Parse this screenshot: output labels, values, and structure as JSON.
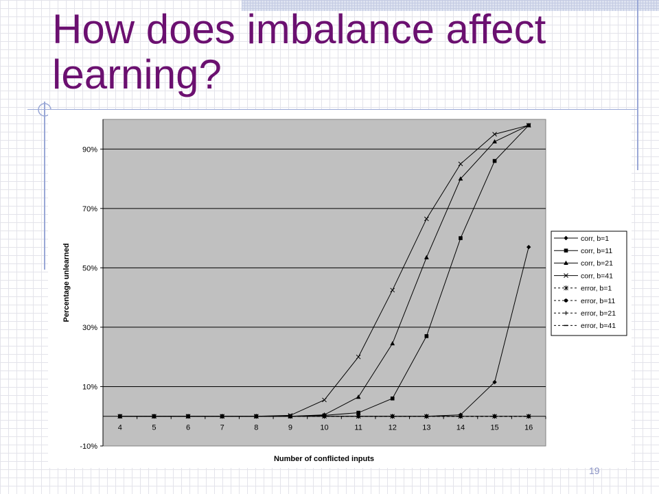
{
  "slide": {
    "title_lines": [
      "How does imbalance affect",
      "learning?"
    ],
    "slide_number": "19"
  },
  "colors": {
    "title": "#6b1070",
    "plot_background": "#c0c0c0",
    "series_line": "#000000",
    "decor_lines": "#99a7d6"
  },
  "chart_data": {
    "type": "line",
    "title": "",
    "xlabel": "Number of conflicted inputs",
    "ylabel": "Percentage unlearned",
    "x": [
      4,
      5,
      6,
      7,
      8,
      9,
      10,
      11,
      12,
      13,
      14,
      15,
      16
    ],
    "ylim": [
      -10,
      100
    ],
    "yticks": [
      -10,
      10,
      30,
      50,
      70,
      90
    ],
    "ytick_labels": [
      "-10%",
      "10%",
      "30%",
      "50%",
      "70%",
      "90%"
    ],
    "grid": "horizontal",
    "legend_position": "right",
    "series": [
      {
        "name": "corr, b=1",
        "marker": "diamond",
        "dash": "solid",
        "values": [
          0,
          0,
          0,
          0,
          0,
          0,
          0,
          0,
          0,
          0,
          0.5,
          11.5,
          57
        ]
      },
      {
        "name": "corr, b=11",
        "marker": "square",
        "dash": "solid",
        "values": [
          0,
          0,
          0,
          0,
          0,
          0,
          0.3,
          1.2,
          6,
          27,
          60,
          86,
          98
        ]
      },
      {
        "name": "corr, b=21",
        "marker": "triangle",
        "dash": "solid",
        "values": [
          0,
          0,
          0,
          0,
          0,
          0,
          0.5,
          6.5,
          24.5,
          53.5,
          80,
          92.5,
          98
        ]
      },
      {
        "name": "corr, b=41",
        "marker": "x",
        "dash": "solid",
        "values": [
          0,
          0,
          0,
          0,
          0,
          0.3,
          5.5,
          20,
          42.5,
          66.5,
          85,
          95,
          98
        ]
      },
      {
        "name": "error, b=1",
        "marker": "star",
        "dash": "dashed",
        "values": [
          0,
          0,
          0,
          0,
          0,
          0,
          0,
          0,
          0,
          0,
          0,
          0,
          0
        ]
      },
      {
        "name": "error, b=11",
        "marker": "circle",
        "dash": "dashed",
        "values": [
          0,
          0,
          0,
          0,
          0,
          0,
          0,
          0,
          0,
          0,
          0,
          0,
          0
        ]
      },
      {
        "name": "error, b=21",
        "marker": "plus",
        "dash": "dashed",
        "values": [
          0,
          0,
          0,
          0,
          0,
          0,
          0,
          0,
          0,
          0,
          0,
          0,
          0
        ]
      },
      {
        "name": "error, b=41",
        "marker": "dash",
        "dash": "dashed",
        "values": [
          0,
          0,
          0,
          0,
          0,
          0,
          0,
          0,
          0,
          0,
          0,
          0,
          0
        ]
      }
    ]
  }
}
